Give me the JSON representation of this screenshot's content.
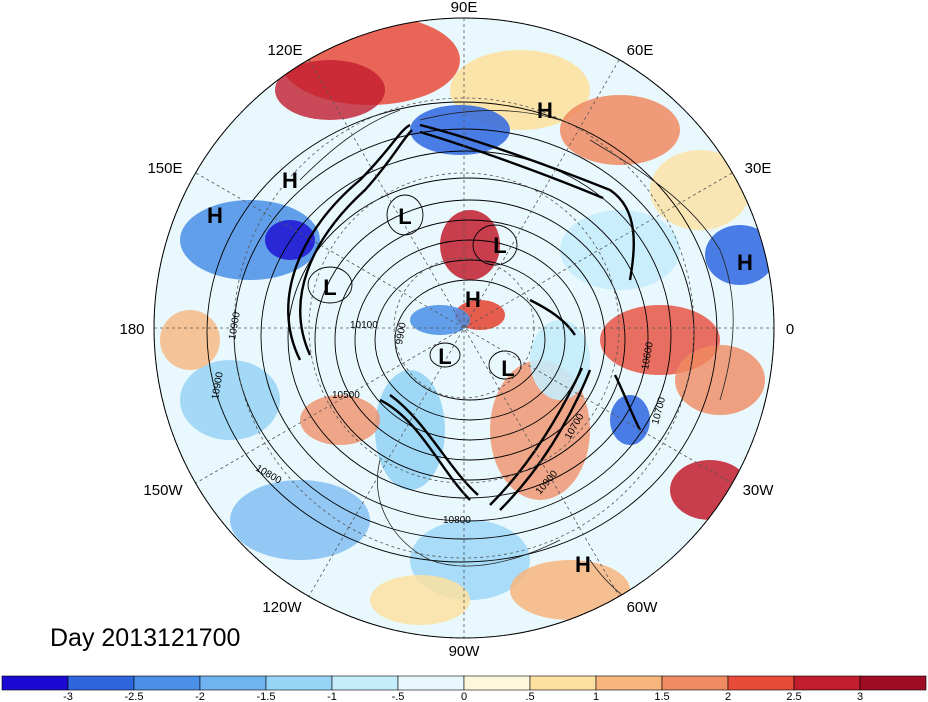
{
  "date_label": "Day 2013121700",
  "longitude_labels": [
    "90E",
    "60E",
    "30E",
    "0",
    "30W",
    "60W",
    "90W",
    "120W",
    "150W",
    "180",
    "150E",
    "120E"
  ],
  "pressure_centers": [
    "H",
    "H",
    "H",
    "H",
    "H",
    "H",
    "L",
    "L",
    "L",
    "L",
    "L"
  ],
  "contour_labels": [
    "10100",
    "10900",
    "10900",
    "10500",
    "10800",
    "10800",
    "10900",
    "10700",
    "10700",
    "10600",
    "9900"
  ],
  "colorbar": {
    "ticks": [
      "-3",
      "-2.5",
      "-2",
      "-1.5",
      "-1",
      "-.5",
      "0",
      ".5",
      "1",
      "1.5",
      "2",
      "2.5",
      "3"
    ],
    "colors": [
      "#1a0ad2",
      "#2e66e0",
      "#4a8fe8",
      "#6fb4f0",
      "#97d4f6",
      "#c5ecfb",
      "#e9f8fd",
      "#fdf8dc",
      "#fde1a1",
      "#f8b57e",
      "#f08a60",
      "#e74b3a",
      "#c21d2e",
      "#9e0b22"
    ]
  }
}
